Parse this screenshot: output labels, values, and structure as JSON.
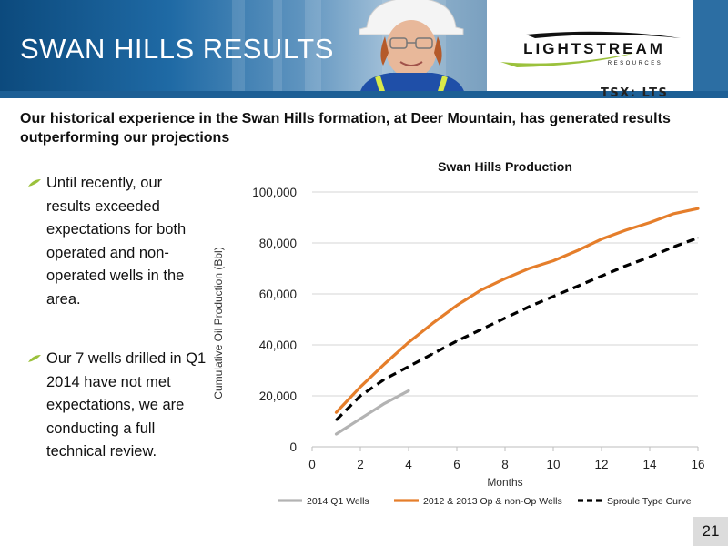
{
  "header": {
    "title": "SWAN HILLS RESULTS",
    "logo_text": "LIGHTSTREAM",
    "logo_subtext": "RESOURCES",
    "ticker": "TSX: LTS"
  },
  "subtitle": "Our historical experience in the Swan Hills formation, at Deer Mountain, has generated results outperforming our projections",
  "bullets": [
    "Until recently, our results exceeded expectations for both operated and non-operated wells in the area.",
    "Our 7 wells drilled in Q1 2014 have not met expectations, we  are conducting a full technical review."
  ],
  "colors": {
    "accent": "#9bc13c",
    "header_blue": "#1d5f95",
    "series_q1": "#b3b3b3",
    "series_op": "#e57e2b",
    "series_type": "#000000"
  },
  "chart_data": {
    "type": "line",
    "title": "Swan Hills Production",
    "xlabel": "Months",
    "ylabel": "Cumulative Oil Production (Bbl)",
    "xlim": [
      0,
      16
    ],
    "ylim": [
      0,
      100000
    ],
    "x_ticks": [
      0,
      2,
      4,
      6,
      8,
      10,
      12,
      14,
      16
    ],
    "y_ticks": [
      0,
      20000,
      40000,
      60000,
      80000,
      100000
    ],
    "y_tick_labels": [
      "0",
      "20,000",
      "40,000",
      "60,000",
      "80,000",
      "100,000"
    ],
    "grid": "horizontal",
    "legend_position": "bottom",
    "series": [
      {
        "name": "2014 Q1 Wells",
        "style": "solid",
        "x": [
          1,
          2,
          3,
          4
        ],
        "y": [
          5000,
          11000,
          17000,
          22000
        ]
      },
      {
        "name": "2012 & 2013 Op & non-Op Wells",
        "style": "solid",
        "x": [
          1,
          2,
          3,
          4,
          5,
          6,
          7,
          8,
          9,
          10,
          11,
          12,
          13,
          14,
          15,
          16
        ],
        "y": [
          13500,
          23500,
          32500,
          41000,
          48500,
          55500,
          61500,
          66000,
          70000,
          73000,
          77000,
          81500,
          85000,
          88000,
          91500,
          93500
        ]
      },
      {
        "name": "Sproule Type Curve",
        "style": "dashed",
        "x": [
          1,
          2,
          3,
          4,
          5,
          6,
          7,
          8,
          9,
          10,
          11,
          12,
          13,
          14,
          15,
          16
        ],
        "y": [
          10500,
          20000,
          26500,
          31500,
          36500,
          41500,
          46000,
          50500,
          55000,
          59000,
          63000,
          67000,
          71000,
          74500,
          78500,
          82000
        ]
      }
    ]
  },
  "page_number": "21"
}
